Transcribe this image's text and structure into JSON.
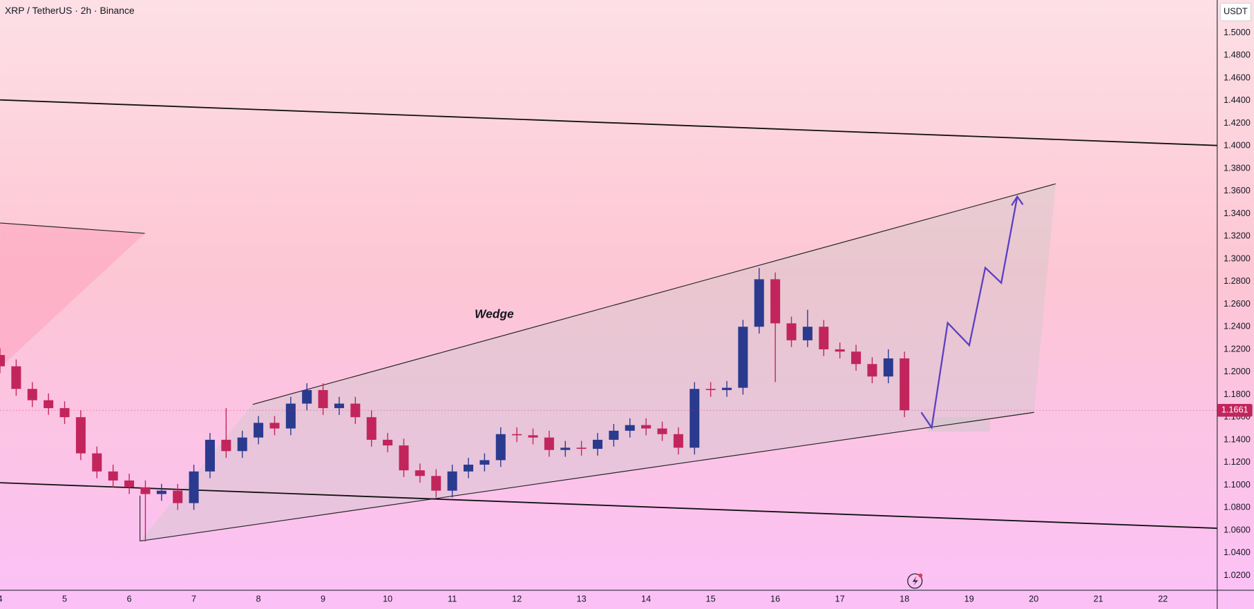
{
  "chart_data": {
    "type": "candlestick",
    "title": "XRP / TetherUS · 2h · Binance",
    "currency": "USDT",
    "annotation": "Wedge",
    "up_color": "#2a3a8f",
    "down_color": "#c2255c",
    "x": [
      4,
      4.25,
      4.5,
      4.75,
      5,
      5.25,
      5.5,
      5.75,
      6,
      6.25,
      6.5,
      6.75,
      7,
      7.25,
      7.5,
      7.75,
      8,
      8.25,
      8.5,
      8.75,
      9,
      9.25,
      9.5,
      9.75,
      10,
      10.25,
      10.5,
      10.75,
      11,
      11.25,
      11.5,
      11.75,
      12,
      12.25,
      12.5,
      12.75,
      13,
      13.25,
      13.5,
      13.75,
      14,
      14.25,
      14.5,
      14.75,
      15,
      15.25,
      15.5,
      15.75,
      16,
      16.25,
      16.5,
      16.75,
      17,
      17.25,
      17.5,
      17.75,
      18
    ],
    "open": [
      1.215,
      1.205,
      1.185,
      1.175,
      1.168,
      1.16,
      1.128,
      1.112,
      1.104,
      1.098,
      1.092,
      1.095,
      1.084,
      1.112,
      1.14,
      1.13,
      1.142,
      1.155,
      1.15,
      1.172,
      1.184,
      1.168,
      1.172,
      1.16,
      1.14,
      1.135,
      1.113,
      1.108,
      1.095,
      1.112,
      1.118,
      1.122,
      1.145,
      1.144,
      1.142,
      1.131,
      1.133,
      1.132,
      1.14,
      1.148,
      1.153,
      1.15,
      1.145,
      1.133,
      1.185,
      1.184,
      1.186,
      1.24,
      1.282,
      1.243,
      1.228,
      1.24,
      1.22,
      1.218,
      1.207,
      1.196,
      1.212
    ],
    "high": [
      1.221,
      1.211,
      1.191,
      1.181,
      1.174,
      1.166,
      1.134,
      1.118,
      1.11,
      1.104,
      1.101,
      1.101,
      1.118,
      1.146,
      1.168,
      1.148,
      1.161,
      1.161,
      1.178,
      1.19,
      1.19,
      1.178,
      1.178,
      1.166,
      1.146,
      1.141,
      1.119,
      1.114,
      1.118,
      1.124,
      1.128,
      1.151,
      1.151,
      1.15,
      1.148,
      1.139,
      1.139,
      1.146,
      1.154,
      1.159,
      1.159,
      1.156,
      1.151,
      1.191,
      1.191,
      1.192,
      1.246,
      1.292,
      1.288,
      1.249,
      1.255,
      1.246,
      1.226,
      1.224,
      1.213,
      1.22,
      1.218
    ],
    "low": [
      1.199,
      1.179,
      1.169,
      1.162,
      1.154,
      1.122,
      1.106,
      1.098,
      1.092,
      1.05,
      1.086,
      1.078,
      1.078,
      1.106,
      1.124,
      1.124,
      1.136,
      1.144,
      1.144,
      1.166,
      1.162,
      1.162,
      1.154,
      1.134,
      1.129,
      1.107,
      1.102,
      1.089,
      1.089,
      1.106,
      1.112,
      1.116,
      1.138,
      1.136,
      1.125,
      1.125,
      1.126,
      1.126,
      1.134,
      1.142,
      1.144,
      1.139,
      1.127,
      1.127,
      1.178,
      1.178,
      1.18,
      1.234,
      1.191,
      1.222,
      1.222,
      1.214,
      1.212,
      1.201,
      1.19,
      1.19,
      1.16
    ],
    "close": [
      1.205,
      1.185,
      1.175,
      1.168,
      1.16,
      1.128,
      1.112,
      1.104,
      1.098,
      1.092,
      1.095,
      1.084,
      1.112,
      1.14,
      1.13,
      1.142,
      1.155,
      1.15,
      1.172,
      1.184,
      1.168,
      1.172,
      1.16,
      1.14,
      1.135,
      1.113,
      1.108,
      1.095,
      1.112,
      1.118,
      1.122,
      1.145,
      1.144,
      1.142,
      1.131,
      1.133,
      1.132,
      1.14,
      1.148,
      1.153,
      1.15,
      1.145,
      1.133,
      1.185,
      1.184,
      1.186,
      1.24,
      1.282,
      1.243,
      1.228,
      1.24,
      1.22,
      1.218,
      1.207,
      1.196,
      1.212,
      1.1661
    ],
    "last_price": {
      "value": 1.1661,
      "label": "1.1661"
    },
    "xlim": [
      4,
      22.84
    ],
    "xticks": [
      4,
      5,
      6,
      7,
      8,
      9,
      10,
      11,
      12,
      13,
      14,
      15,
      16,
      17,
      18,
      19,
      20,
      21,
      22
    ],
    "ylim": [
      1.0073,
      1.529
    ],
    "yticks": [
      {
        "value": 1.02,
        "label": "1.0200"
      },
      {
        "value": 1.04,
        "label": "1.0400"
      },
      {
        "value": 1.06,
        "label": "1.0600"
      },
      {
        "value": 1.08,
        "label": "1.0800"
      },
      {
        "value": 1.1,
        "label": "1.1000"
      },
      {
        "value": 1.12,
        "label": "1.1200"
      },
      {
        "value": 1.14,
        "label": "1.1400"
      },
      {
        "value": 1.16,
        "label": "1.1600"
      },
      {
        "value": 1.18,
        "label": "1.1800"
      },
      {
        "value": 1.2,
        "label": "1.2000"
      },
      {
        "value": 1.22,
        "label": "1.2200"
      },
      {
        "value": 1.24,
        "label": "1.2400"
      },
      {
        "value": 1.26,
        "label": "1.2600"
      },
      {
        "value": 1.28,
        "label": "1.2800"
      },
      {
        "value": 1.3,
        "label": "1.3000"
      },
      {
        "value": 1.32,
        "label": "1.3200"
      },
      {
        "value": 1.34,
        "label": "1.3400"
      },
      {
        "value": 1.36,
        "label": "1.3600"
      },
      {
        "value": 1.38,
        "label": "1.3800"
      },
      {
        "value": 1.4,
        "label": "1.4000"
      },
      {
        "value": 1.42,
        "label": "1.4200"
      },
      {
        "value": 1.44,
        "label": "1.4400"
      },
      {
        "value": 1.46,
        "label": "1.4600"
      },
      {
        "value": 1.48,
        "label": "1.4800"
      },
      {
        "value": 1.5,
        "label": "1.5000"
      }
    ],
    "grid": false
  }
}
